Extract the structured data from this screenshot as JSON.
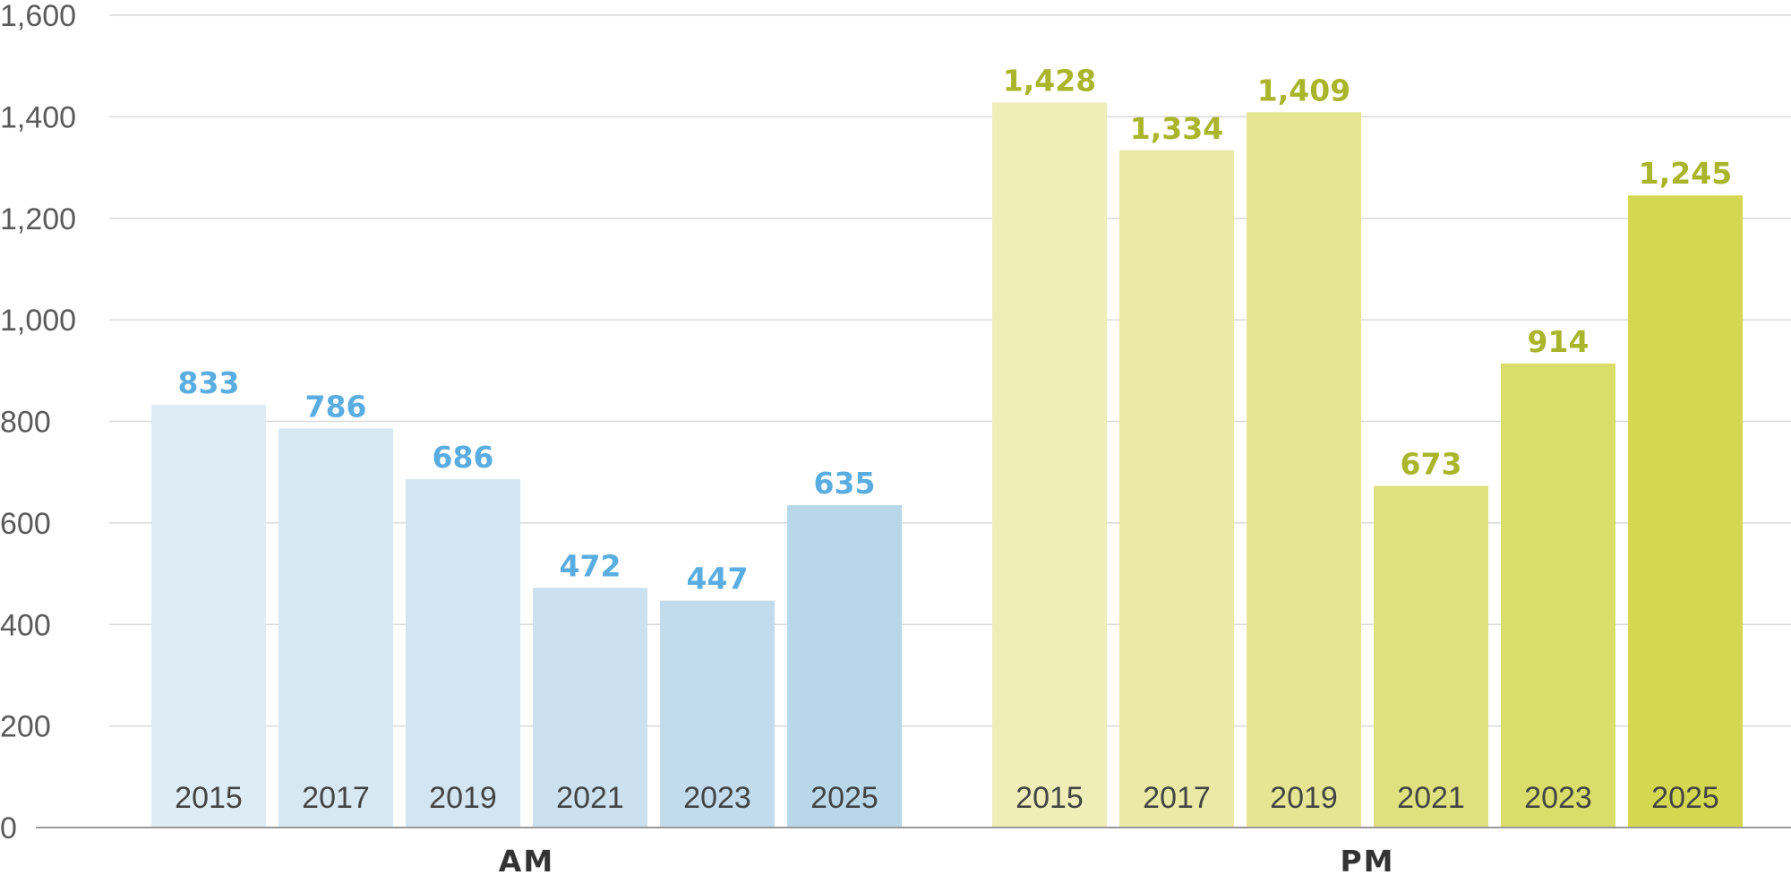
{
  "chart_data": {
    "type": "bar",
    "title": "",
    "xlabel": "",
    "ylabel": "",
    "ylim": [
      0,
      1600
    ],
    "yticks": [
      0,
      200,
      400,
      600,
      800,
      1000,
      1200,
      1400,
      1600
    ],
    "ytick_labels": [
      "0",
      "200",
      "400",
      "600",
      "800",
      "1,000",
      "1,200",
      "1,400",
      "1,600"
    ],
    "grid": true,
    "legend": "none",
    "groups": [
      {
        "name": "AM",
        "label_color": "#5aade0",
        "categories": [
          "2015",
          "2017",
          "2019",
          "2021",
          "2023",
          "2025"
        ],
        "values": [
          833,
          786,
          686,
          472,
          447,
          635
        ],
        "value_labels": [
          "833",
          "786",
          "686",
          "472",
          "447",
          "635"
        ],
        "colors": [
          "#deecf5",
          "#d8e8f3",
          "#d2e5f1",
          "#cbe1ef",
          "#c2dced",
          "#b8d8ea"
        ]
      },
      {
        "name": "PM",
        "label_color": "#a9b52a",
        "categories": [
          "2015",
          "2017",
          "2019",
          "2021",
          "2023",
          "2025"
        ],
        "values": [
          1428,
          1334,
          1409,
          673,
          914,
          1245
        ],
        "value_labels": [
          "1,428",
          "1,334",
          "1,409",
          "673",
          "914",
          "1,245"
        ],
        "colors": [
          "#efedb8",
          "#eae9a6",
          "#e5e594",
          "#dfe17f",
          "#d9dd69",
          "#d3d850"
        ]
      }
    ]
  }
}
